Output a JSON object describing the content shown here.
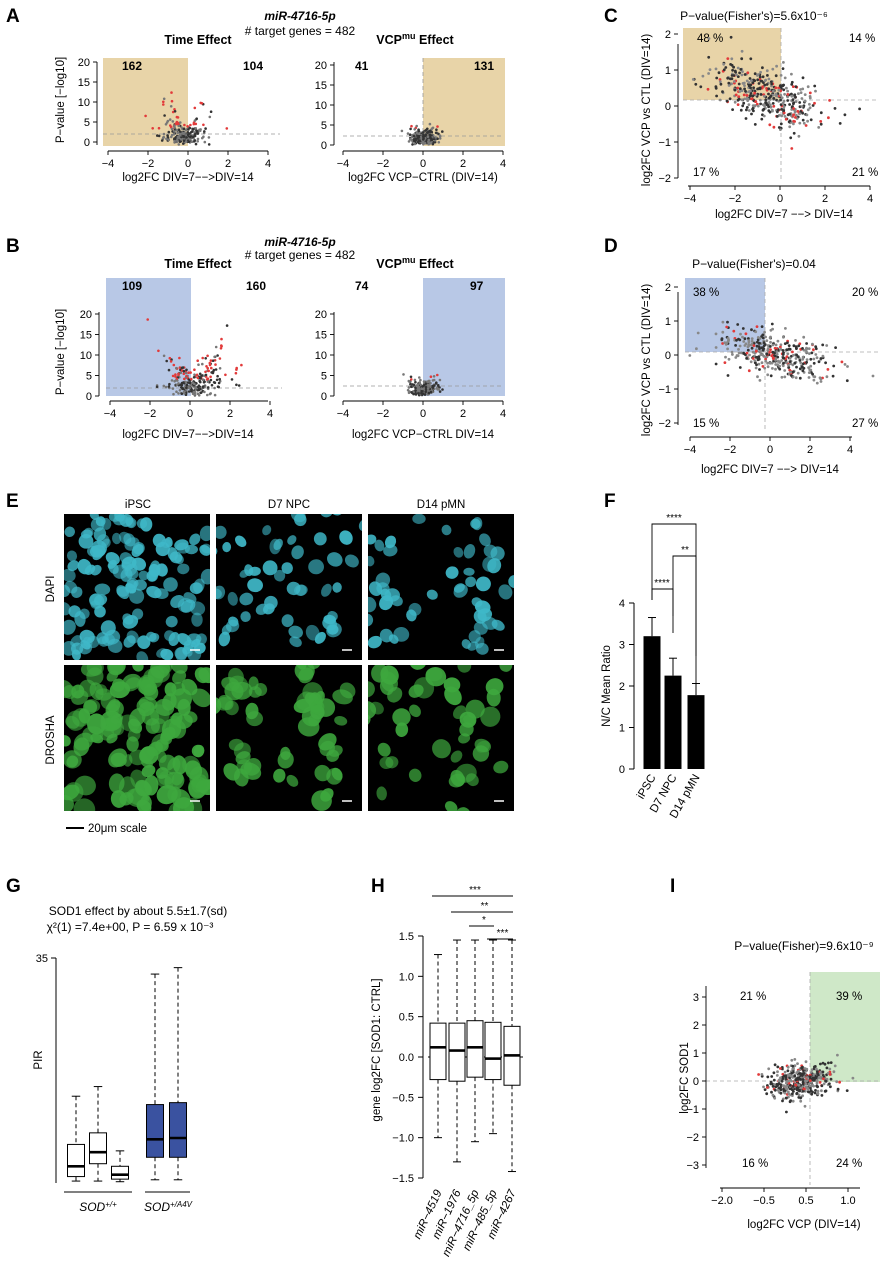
{
  "panels": {
    "A": {
      "label": "A",
      "mirna": "miR-4716-5p",
      "target_genes": "# target  genes = 482",
      "left": {
        "title": "Time Effect",
        "ylabel": "P−value [−log10]",
        "xlabel": "log2FC DIV=7−−>DIV=14",
        "count_left": "162",
        "count_right": "104",
        "xticks": [
          "−4",
          "−2",
          "0",
          "2",
          "4"
        ],
        "yticks": [
          "0",
          "5",
          "10",
          "15",
          "20"
        ],
        "highlight_color": "#e8d4a8"
      },
      "right": {
        "title": "VCPmu Effect",
        "xlabel": "log2FC VCP−CTRL (DIV=14)",
        "count_left": "41",
        "count_right": "131",
        "xticks": [
          "−4",
          "−2",
          "0",
          "2",
          "4"
        ],
        "yticks": [
          "0",
          "5",
          "10",
          "15",
          "20"
        ],
        "highlight_color": "#e8d4a8"
      }
    },
    "B": {
      "label": "B",
      "mirna": "miR-4716-5p",
      "target_genes": "# target  genes = 482",
      "left": {
        "title": "Time Effect",
        "ylabel": "P−value [−log10]",
        "xlabel": "log2FC DIV=7−−>DIV=14",
        "count_left": "109",
        "count_right": "160",
        "xticks": [
          "−4",
          "−2",
          "0",
          "2",
          "4"
        ],
        "yticks": [
          "0",
          "5",
          "10",
          "15",
          "20"
        ],
        "highlight_color": "#b8c8e6"
      },
      "right": {
        "title": "VCPmu Effect",
        "xlabel": "log2FC VCP−CTRL DIV=14",
        "count_left": "74",
        "count_right": "97",
        "xticks": [
          "−4",
          "−2",
          "0",
          "2",
          "4"
        ],
        "yticks": [
          "0",
          "5",
          "10",
          "15",
          "20"
        ],
        "highlight_color": "#b8c8e6"
      }
    },
    "C": {
      "label": "C",
      "pvalue": "P−value(Fisher's)=5.6x10⁻⁶",
      "ylabel": "log2FC VCP vs CTL (DIV=14)",
      "xlabel": "log2FC DIV=7 −−> DIV=14",
      "q_tl": "48 %",
      "q_tr": "14 %",
      "q_bl": "17 %",
      "q_br": "21 %",
      "xticks": [
        "−4",
        "−2",
        "0",
        "2",
        "4"
      ],
      "yticks": [
        "−2",
        "−1",
        "0",
        "1",
        "2"
      ],
      "highlight_color": "#e8d4a8"
    },
    "D": {
      "label": "D",
      "pvalue": "P−value(Fisher's)=0.04",
      "ylabel": "log2FC VCP vs CTL (DIV=14)",
      "xlabel": "log2FC DIV=7 −−> DIV=14",
      "q_tl": "38 %",
      "q_tr": "20 %",
      "q_bl": "15 %",
      "q_br": "27 %",
      "xticks": [
        "−4",
        "−2",
        "0",
        "2",
        "4"
      ],
      "yticks": [
        "−2",
        "−1",
        "0",
        "1",
        "2"
      ],
      "highlight_color": "#b8c8e6"
    },
    "E": {
      "label": "E",
      "columns": [
        "iPSC",
        "D7 NPC",
        "D14 pMN"
      ],
      "rows": [
        "DAPI",
        "DROSHA"
      ],
      "scale_label": "20μm scale",
      "dapi_color": "#3fb8c8",
      "drosha_color": "#3ea83e"
    },
    "F": {
      "label": "F",
      "ylabel": "N/C Mean Ratio",
      "yticks": [
        "0",
        "1",
        "2",
        "3",
        "4"
      ],
      "sig": [
        "****",
        "**",
        "****"
      ]
    },
    "G": {
      "label": "G",
      "line1": "SOD1 effect by about 5.5±1.7(sd)",
      "line2": "χ²(1) =7.4e+00, P = 6.59 x 10⁻³",
      "ylabel": "PIR",
      "ytick_top": "35",
      "group1": "SOD+/+",
      "group2": "SOD+/A4V",
      "fill2": "#3a52a0"
    },
    "H": {
      "label": "H",
      "ylabel": "gene log2FC [SOD1: CTRL]",
      "yticks": [
        "−1.5",
        "−1.0",
        "−0.5",
        "0.0",
        "0.5",
        "1.0",
        "1.5"
      ],
      "sig": [
        "***",
        "**",
        "*",
        "***"
      ]
    },
    "I": {
      "label": "I",
      "pvalue": "P−value(Fisher)=9.6x10⁻⁹",
      "ylabel": "log2FC SOD1",
      "xlabel": "log2FC VCP (DIV=14)",
      "q_tl": "21 %",
      "q_tr": "39 %",
      "q_bl": "16 %",
      "q_br": "24 %",
      "xticks": [
        "−2.0",
        "−0.5",
        "0.5",
        "1.0"
      ],
      "yticks": [
        "−3",
        "−2",
        "−1",
        "0",
        "1",
        "2",
        "3"
      ],
      "highlight_color": "#cfe8c8"
    }
  },
  "chart_data": [
    {
      "type": "bar",
      "panel": "F",
      "categories": [
        "iPSC",
        "D7 NPC",
        "D14 pMN"
      ],
      "values": [
        3.2,
        2.25,
        1.78
      ],
      "errors": [
        0.45,
        0.42,
        0.28
      ],
      "ylabel": "N/C Mean Ratio",
      "ylim": [
        0,
        4
      ]
    },
    {
      "type": "box",
      "panel": "G",
      "categories": [
        "SOD+/+ 1",
        "SOD+/+ 2",
        "SOD+/+ 3",
        "SOD+/A4V 1",
        "SOD+/A4V 2"
      ],
      "boxes": [
        {
          "min": 0.3,
          "q1": 1.0,
          "median": 2.6,
          "q3": 6.0,
          "max": 13.5
        },
        {
          "min": 0.3,
          "q1": 3.0,
          "median": 4.8,
          "q3": 7.8,
          "max": 15.0
        },
        {
          "min": 0.2,
          "q1": 0.6,
          "median": 1.3,
          "q3": 2.6,
          "max": 5.0
        },
        {
          "min": 0.5,
          "q1": 4.0,
          "median": 6.8,
          "q3": 12.2,
          "max": 32.5
        },
        {
          "min": 0.5,
          "q1": 4.0,
          "median": 7.0,
          "q3": 12.5,
          "max": 33.5
        }
      ],
      "ylabel": "PIR",
      "ylim": [
        0,
        35
      ]
    },
    {
      "type": "box",
      "panel": "H",
      "categories": [
        "miR−4519",
        "miR−1976",
        "miR−4716_5p",
        "miR−485_5p",
        "miR−4267"
      ],
      "boxes": [
        {
          "min": -1.0,
          "q1": -0.28,
          "median": 0.12,
          "q3": 0.42,
          "max": 1.27
        },
        {
          "min": -1.3,
          "q1": -0.3,
          "median": 0.08,
          "q3": 0.42,
          "max": 1.45
        },
        {
          "min": -1.05,
          "q1": -0.25,
          "median": 0.12,
          "q3": 0.45,
          "max": 1.45
        },
        {
          "min": -0.95,
          "q1": -0.28,
          "median": -0.02,
          "q3": 0.43,
          "max": 1.45
        },
        {
          "min": -1.42,
          "q1": -0.35,
          "median": 0.02,
          "q3": 0.38,
          "max": 1.45
        }
      ],
      "ylabel": "gene log2FC [SOD1: CTRL]",
      "ylim": [
        -1.5,
        1.5
      ]
    }
  ]
}
